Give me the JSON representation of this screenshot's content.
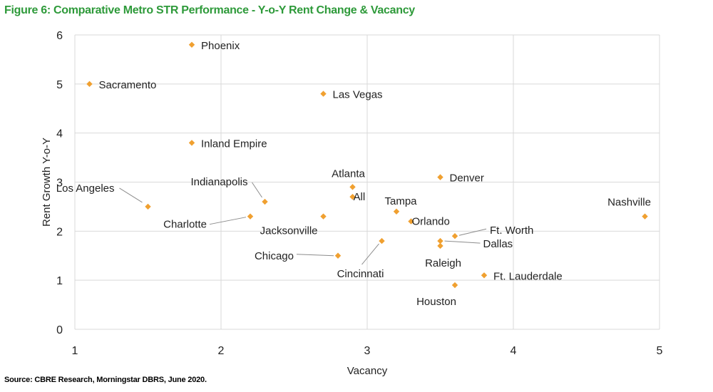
{
  "title": "Figure 6: Comparative Metro STR Performance - Y-o-Y Rent Change & Vacancy",
  "source": "Source: CBRE Research, Morningstar DBRS, June 2020.",
  "colors": {
    "title": "#2e9a3a",
    "marker": "#f0a030",
    "grid": "#d9d9d9",
    "leader": "#8c8c8c"
  },
  "chart_data": {
    "type": "scatter",
    "xlabel": "Vacancy",
    "ylabel": "Rent Growth Y-o-Y",
    "xlim": [
      1,
      5
    ],
    "ylim": [
      0,
      6
    ],
    "xticks": [
      1,
      2,
      3,
      4,
      5
    ],
    "yticks": [
      0,
      1,
      2,
      3,
      4,
      5,
      6
    ],
    "grid": true,
    "legend": "none",
    "points": [
      {
        "label": "Phoenix",
        "x": 1.8,
        "y": 5.8
      },
      {
        "label": "Sacramento",
        "x": 1.1,
        "y": 5.0
      },
      {
        "label": "Las Vegas",
        "x": 2.7,
        "y": 4.8
      },
      {
        "label": "Inland Empire",
        "x": 1.8,
        "y": 3.8
      },
      {
        "label": "Los Angeles",
        "x": 1.5,
        "y": 2.5
      },
      {
        "label": "Indianapolis",
        "x": 2.3,
        "y": 2.6
      },
      {
        "label": "Charlotte",
        "x": 2.2,
        "y": 2.3
      },
      {
        "label": "Jacksonville",
        "x": 2.7,
        "y": 2.3
      },
      {
        "label": "Atlanta",
        "x": 2.9,
        "y": 2.9
      },
      {
        "label": "All",
        "x": 2.9,
        "y": 2.7
      },
      {
        "label": "Denver",
        "x": 3.5,
        "y": 3.1
      },
      {
        "label": "Tampa",
        "x": 3.2,
        "y": 2.4
      },
      {
        "label": "Orlando",
        "x": 3.3,
        "y": 2.2
      },
      {
        "label": "Chicago",
        "x": 2.8,
        "y": 1.5
      },
      {
        "label": "Cincinnati",
        "x": 3.1,
        "y": 1.8
      },
      {
        "label": "Ft. Worth",
        "x": 3.6,
        "y": 1.9
      },
      {
        "label": "Dallas",
        "x": 3.5,
        "y": 1.8
      },
      {
        "label": "Raleigh",
        "x": 3.5,
        "y": 1.7
      },
      {
        "label": "Ft. Lauderdale",
        "x": 3.8,
        "y": 1.1
      },
      {
        "label": "Houston",
        "x": 3.6,
        "y": 0.9
      },
      {
        "label": "Nashville",
        "x": 4.9,
        "y": 2.3
      }
    ]
  }
}
